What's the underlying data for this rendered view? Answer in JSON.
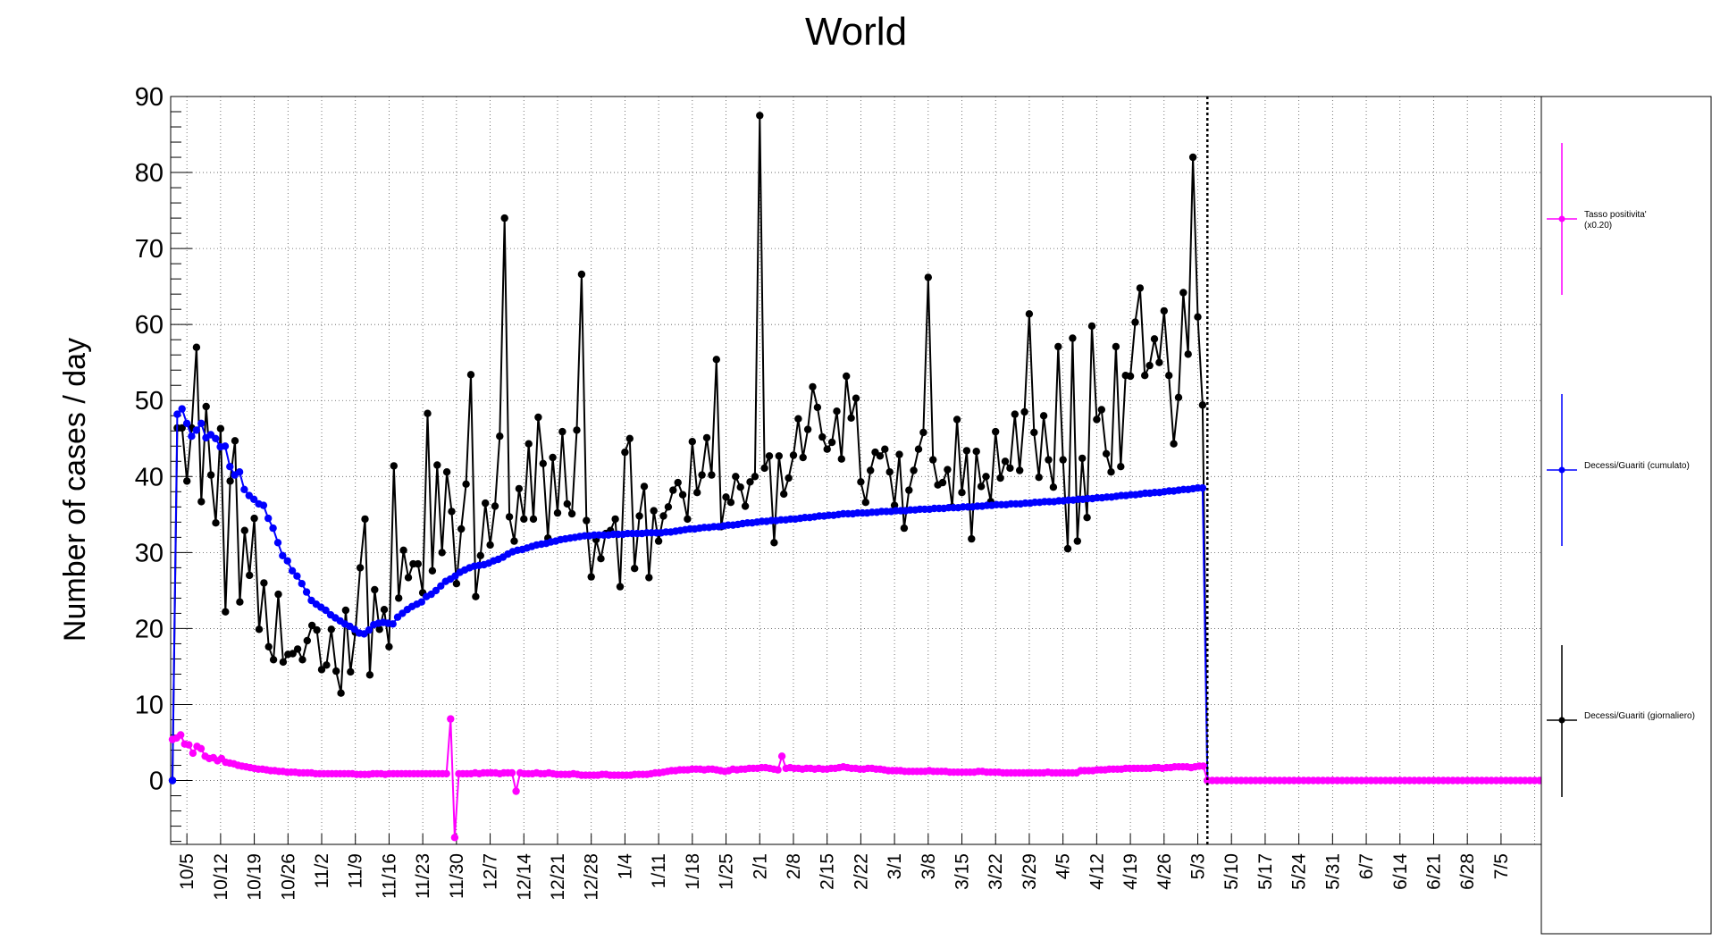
{
  "chart_data": {
    "type": "line",
    "title": "World",
    "ylabel": "Number of cases / day",
    "ylim": [
      -8.4,
      90
    ],
    "yticks": [
      0,
      10,
      20,
      30,
      40,
      50,
      60,
      70,
      80,
      90
    ],
    "xlabels": [
      "10/5",
      "10/12",
      "10/19",
      "10/26",
      "11/2",
      "11/9",
      "11/16",
      "11/23",
      "11/30",
      "12/7",
      "12/14",
      "12/21",
      "12/28",
      "1/4",
      "1/11",
      "1/18",
      "1/25",
      "2/1",
      "2/8",
      "2/15",
      "2/22",
      "3/1",
      "3/8",
      "3/15",
      "3/22",
      "3/29",
      "4/5",
      "4/12",
      "4/19",
      "4/26",
      "5/3",
      "5/10",
      "5/17",
      "5/24",
      "5/31",
      "6/7",
      "6/14",
      "6/21",
      "6/28",
      "7/5"
    ],
    "first_date": "2020-10-01",
    "last_date": "2021-07-12",
    "data_end_date": "2021-05-04",
    "marker_line_date": "2021-05-04",
    "grid": true,
    "legend_position": "right",
    "series": [
      {
        "name": "Decessi/Guariti (giornaliero)",
        "color": "#000000",
        "values": [
          0,
          46.4,
          46.4,
          39.4,
          46.4,
          57.0,
          36.7,
          49.2,
          40.2,
          33.9,
          46.3,
          22.2,
          39.4,
          44.7,
          23.5,
          32.9,
          27.0,
          34.5,
          19.9,
          26.0,
          17.6,
          15.9,
          24.5,
          15.6,
          16.6,
          16.7,
          17.3,
          15.9,
          18.4,
          20.4,
          19.8,
          14.6,
          15.2,
          19.9,
          14.4,
          11.5,
          22.4,
          14.3,
          19.5,
          28.0,
          34.4,
          13.9,
          25.1,
          19.9,
          22.5,
          17.6,
          41.4,
          24.0,
          30.3,
          26.7,
          28.5,
          28.5,
          24.7,
          48.3,
          27.6,
          41.5,
          30.0,
          40.6,
          35.4,
          25.9,
          33.1,
          39.0,
          53.4,
          24.2,
          29.6,
          36.5,
          31.0,
          36.1,
          45.3,
          74.0,
          34.7,
          31.5,
          38.4,
          34.4,
          44.3,
          34.4,
          47.8,
          41.7,
          31.9,
          42.5,
          35.2,
          45.9,
          36.4,
          35.1,
          46.1,
          66.6,
          34.2,
          26.8,
          31.7,
          29.2,
          32.5,
          32.9,
          34.4,
          25.5,
          43.2,
          45.0,
          27.9,
          34.8,
          38.7,
          26.7,
          35.5,
          31.5,
          34.8,
          36.0,
          38.2,
          39.2,
          37.6,
          34.4,
          44.6,
          37.9,
          40.2,
          45.1,
          40.2,
          55.4,
          33.4,
          37.3,
          36.6,
          40.0,
          38.6,
          36.1,
          39.3,
          40.0,
          87.5,
          41.1,
          42.7,
          31.3,
          42.7,
          37.7,
          39.8,
          42.8,
          47.6,
          42.5,
          46.2,
          51.8,
          49.1,
          45.2,
          43.6,
          44.5,
          48.6,
          42.3,
          53.2,
          47.7,
          50.3,
          39.3,
          36.6,
          40.8,
          43.2,
          42.7,
          43.6,
          40.6,
          36.2,
          42.9,
          33.2,
          38.2,
          40.8,
          43.6,
          45.8,
          66.2,
          42.2,
          38.9,
          39.2,
          40.9,
          36.0,
          47.5,
          37.9,
          43.4,
          31.8,
          43.3,
          38.7,
          40.0,
          36.7,
          45.9,
          39.8,
          42.0,
          41.1,
          48.2,
          40.8,
          48.5,
          61.4,
          45.8,
          39.9,
          48.0,
          42.2,
          38.6,
          57.1,
          42.2,
          30.5,
          58.2,
          31.5,
          42.4,
          34.6,
          59.8,
          47.5,
          48.8,
          43.0,
          40.6,
          57.1,
          41.3,
          53.3,
          53.2,
          60.3,
          64.8,
          53.3,
          54.6,
          58.1,
          55.0,
          61.8,
          53.3,
          44.3,
          50.4,
          64.2,
          56.1,
          82.0,
          61.0,
          49.4,
          0
        ]
      },
      {
        "name": "Decessi/Guariti (cumulato)",
        "color": "#0000ff",
        "values": [
          0,
          48.2,
          48.9,
          47.0,
          45.3,
          46.1,
          47.0,
          45.1,
          45.5,
          45.0,
          43.9,
          44.0,
          41.3,
          40.2,
          40.6,
          38.3,
          37.5,
          37.0,
          36.4,
          36.2,
          34.5,
          33.2,
          31.3,
          29.6,
          28.9,
          27.6,
          26.9,
          25.9,
          24.8,
          23.7,
          23.2,
          22.8,
          22.4,
          21.8,
          21.4,
          21.0,
          20.6,
          20.3,
          19.9,
          19.4,
          19.3,
          19.8,
          20.5,
          20.7,
          20.8,
          20.7,
          20.6,
          21.5,
          22.0,
          22.5,
          22.9,
          23.2,
          23.5,
          24.2,
          24.5,
          25.0,
          25.6,
          26.2,
          26.5,
          26.9,
          27.4,
          27.7,
          28.0,
          28.2,
          28.3,
          28.4,
          28.6,
          28.9,
          29.1,
          29.4,
          29.8,
          30.1,
          30.3,
          30.4,
          30.6,
          30.8,
          31.0,
          31.1,
          31.2,
          31.4,
          31.5,
          31.7,
          31.8,
          31.9,
          32.0,
          32.1,
          32.2,
          32.2,
          32.3,
          32.3,
          32.3,
          32.3,
          32.4,
          32.4,
          32.4,
          32.5,
          32.5,
          32.5,
          32.5,
          32.6,
          32.6,
          32.6,
          32.6,
          32.7,
          32.7,
          32.8,
          32.9,
          33.0,
          33.1,
          33.1,
          33.2,
          33.3,
          33.3,
          33.4,
          33.4,
          33.5,
          33.6,
          33.6,
          33.7,
          33.8,
          33.9,
          33.9,
          34.0,
          34.1,
          34.1,
          34.2,
          34.2,
          34.3,
          34.3,
          34.4,
          34.4,
          34.5,
          34.6,
          34.6,
          34.7,
          34.8,
          34.8,
          34.9,
          34.9,
          35.0,
          35.1,
          35.1,
          35.1,
          35.2,
          35.2,
          35.2,
          35.3,
          35.3,
          35.4,
          35.4,
          35.4,
          35.5,
          35.5,
          35.5,
          35.6,
          35.6,
          35.7,
          35.7,
          35.7,
          35.8,
          35.8,
          35.8,
          35.9,
          35.9,
          35.9,
          36.0,
          36.0,
          36.0,
          36.1,
          36.1,
          36.2,
          36.2,
          36.3,
          36.3,
          36.3,
          36.4,
          36.4,
          36.4,
          36.5,
          36.5,
          36.6,
          36.6,
          36.7,
          36.7,
          36.7,
          36.8,
          36.8,
          36.9,
          36.9,
          37.0,
          37.0,
          37.1,
          37.1,
          37.2,
          37.2,
          37.3,
          37.3,
          37.4,
          37.5,
          37.5,
          37.6,
          37.6,
          37.7,
          37.8,
          37.8,
          37.9,
          37.9,
          38.0,
          38.1,
          38.1,
          38.2,
          38.3,
          38.3,
          38.4,
          38.5,
          38.5,
          0
        ]
      },
      {
        "name": "Tasso positivita' (x0.20)",
        "color": "#ff00ff",
        "values": [
          5.4,
          5.6,
          6.0,
          4.8,
          4.7,
          3.6,
          4.5,
          4.2,
          3.2,
          2.9,
          3.0,
          2.6,
          2.9,
          2.4,
          2.3,
          2.2,
          2.0,
          1.9,
          1.8,
          1.7,
          1.6,
          1.5,
          1.5,
          1.4,
          1.3,
          1.3,
          1.2,
          1.2,
          1.1,
          1.1,
          1.1,
          1.0,
          1.0,
          1.0,
          1.0,
          0.9,
          0.9,
          0.9,
          0.9,
          0.9,
          0.9,
          0.9,
          0.9,
          0.9,
          0.9,
          0.8,
          0.8,
          0.8,
          0.8,
          0.9,
          0.9,
          0.9,
          0.8,
          0.9,
          0.9,
          0.9,
          0.9,
          0.9,
          0.9,
          0.9,
          0.9,
          0.9,
          0.9,
          0.9,
          0.9,
          0.9,
          0.9,
          0.9,
          8.1,
          -7.5,
          0.9,
          0.9,
          0.9,
          0.9,
          1.0,
          0.9,
          1.0,
          1.0,
          1.0,
          1.0,
          0.9,
          1.0,
          1.0,
          1.0,
          -1.4,
          1.0,
          0.9,
          0.9,
          0.9,
          1.0,
          0.9,
          0.9,
          1.0,
          0.9,
          0.8,
          0.8,
          0.8,
          0.8,
          0.9,
          0.8,
          0.7,
          0.7,
          0.7,
          0.7,
          0.7,
          0.8,
          0.8,
          0.7,
          0.7,
          0.7,
          0.7,
          0.7,
          0.7,
          0.8,
          0.8,
          0.8,
          0.8,
          0.9,
          1.0,
          1.0,
          1.1,
          1.2,
          1.3,
          1.3,
          1.4,
          1.4,
          1.4,
          1.5,
          1.5,
          1.5,
          1.4,
          1.5,
          1.5,
          1.4,
          1.3,
          1.2,
          1.3,
          1.5,
          1.4,
          1.5,
          1.5,
          1.6,
          1.6,
          1.6,
          1.7,
          1.7,
          1.6,
          1.5,
          1.4,
          3.2,
          1.6,
          1.7,
          1.6,
          1.6,
          1.5,
          1.6,
          1.6,
          1.5,
          1.6,
          1.5,
          1.5,
          1.6,
          1.6,
          1.7,
          1.8,
          1.7,
          1.6,
          1.6,
          1.5,
          1.5,
          1.6,
          1.6,
          1.5,
          1.5,
          1.4,
          1.3,
          1.3,
          1.3,
          1.3,
          1.2,
          1.2,
          1.2,
          1.2,
          1.2,
          1.2,
          1.3,
          1.2,
          1.2,
          1.2,
          1.2,
          1.1,
          1.1,
          1.1,
          1.1,
          1.1,
          1.1,
          1.1,
          1.2,
          1.2,
          1.1,
          1.1,
          1.1,
          1.1,
          1.0,
          1.0,
          1.0,
          1.0,
          1.0,
          1.0,
          1.0,
          1.0,
          1.0,
          1.0,
          1.0,
          1.1,
          1.0,
          1.0,
          1.0,
          1.0,
          1.0,
          1.0,
          1.0,
          1.3,
          1.3,
          1.3,
          1.3,
          1.4,
          1.4,
          1.4,
          1.5,
          1.5,
          1.5,
          1.5,
          1.6,
          1.6,
          1.6,
          1.6,
          1.6,
          1.6,
          1.6,
          1.7,
          1.7,
          1.6,
          1.7,
          1.7,
          1.8,
          1.8,
          1.8,
          1.8,
          1.7,
          1.8,
          1.9,
          1.9,
          0.0
        ]
      }
    ],
    "legend": [
      {
        "label_lines": [
          "Tasso positivita'",
          "(x0.20)"
        ],
        "color": "#ff00ff"
      },
      {
        "label_lines": [
          "Decessi/Guariti (cumulato)"
        ],
        "color": "#0000ff"
      },
      {
        "label_lines": [
          "Decessi/Guariti (giornaliero)"
        ],
        "color": "#000000"
      }
    ]
  }
}
